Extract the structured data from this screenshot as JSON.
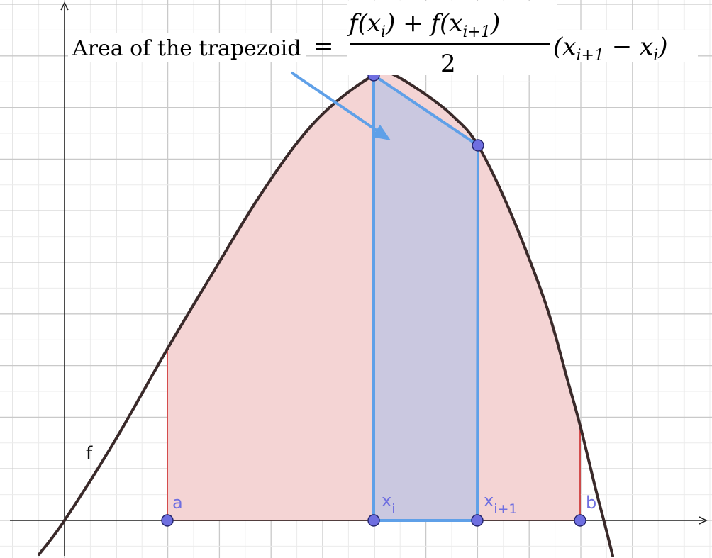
{
  "formula": {
    "label": "Area of the trapezoid",
    "equals": "=",
    "numerator_a": "f(x",
    "numerator_a_sub": "i",
    "numerator_mid": ") + f(x",
    "numerator_b_sub": "i+1",
    "numerator_end": ")",
    "denominator": "2",
    "factor_open": "(x",
    "factor_sub_1": "i+1",
    "factor_mid": " − x",
    "factor_sub_2": "i",
    "factor_close": ")"
  },
  "labels": {
    "function": "f",
    "a": "a",
    "b": "b",
    "xi": "x",
    "xi_sub": "i",
    "xi1": "x",
    "xi1_sub": "i+1"
  },
  "colors": {
    "curve": "#3a2a2a",
    "region_fill": "#f4d4d4",
    "region_edge": "#cc2b2b",
    "trapezoid_fill": "#c2c6e2",
    "trapezoid_edge": "#5fa0e8",
    "point_fill": "#6f6fe0",
    "point_label": "#6f6fe0",
    "arrow": "#5fa0e8"
  }
}
